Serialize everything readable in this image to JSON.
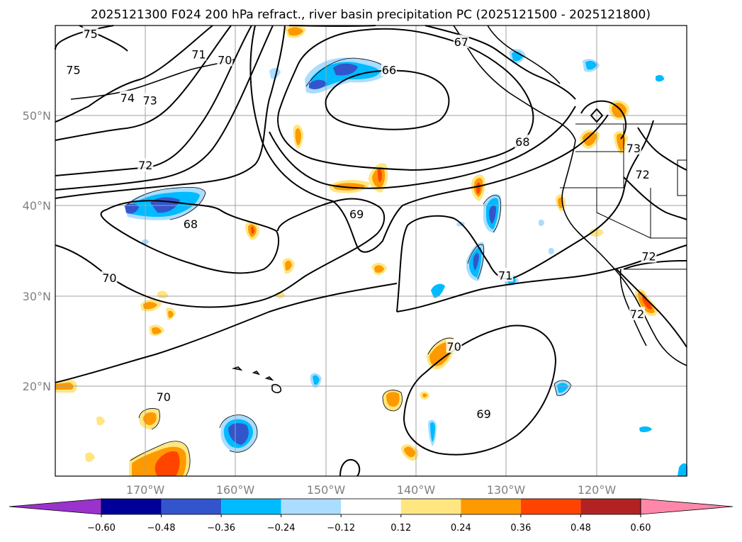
{
  "chart_data": {
    "type": "contour map",
    "title": "2025121300 F024 200 hPa refract., river basin precipitation PC (2025121500 - 2025121800)",
    "lon_range": [
      -180,
      -110
    ],
    "lat_range": [
      10,
      60
    ],
    "grid": true,
    "lon_ticks": [
      {
        "value": -170,
        "label": "170°W"
      },
      {
        "value": -160,
        "label": "160°W"
      },
      {
        "value": -150,
        "label": "150°W"
      },
      {
        "value": -140,
        "label": "140°W"
      },
      {
        "value": -130,
        "label": "130°W"
      },
      {
        "value": -120,
        "label": "120°W"
      }
    ],
    "lat_ticks": [
      {
        "value": 50,
        "label": "50°N"
      },
      {
        "value": 40,
        "label": "40°N"
      },
      {
        "value": 30,
        "label": "30°N"
      },
      {
        "value": 20,
        "label": "20°N"
      }
    ],
    "colorbar": {
      "levels": [
        -0.6,
        -0.48,
        -0.36,
        -0.24,
        -0.12,
        0.12,
        0.24,
        0.36,
        0.48,
        0.6
      ],
      "tick_labels": [
        "−0.60",
        "−0.48",
        "−0.36",
        "−0.24",
        "−0.12",
        "0.12",
        "0.24",
        "0.36",
        "0.48",
        "0.60"
      ],
      "colors": [
        "#9933cc",
        "#000099",
        "#3355cc",
        "#00bbff",
        "#aaddff",
        "#ffffff",
        "#ffe680",
        "#ff9900",
        "#ff4400",
        "#b22222",
        "#ff88aa"
      ],
      "extend": "both"
    },
    "contour_labels": [
      {
        "text": "75",
        "lon": -176.1,
        "lat": 59.1
      },
      {
        "text": "75",
        "lon": -178,
        "lat": 55.1
      },
      {
        "text": "71",
        "lon": -164.1,
        "lat": 56.8
      },
      {
        "text": "70",
        "lon": -161.2,
        "lat": 56.2
      },
      {
        "text": "74",
        "lon": -172,
        "lat": 52
      },
      {
        "text": "73",
        "lon": -169.5,
        "lat": 51.7
      },
      {
        "text": "72",
        "lon": -170,
        "lat": 44.5
      },
      {
        "text": "68",
        "lon": -165,
        "lat": 38
      },
      {
        "text": "70",
        "lon": -174,
        "lat": 32
      },
      {
        "text": "70",
        "lon": -168,
        "lat": 18.8
      },
      {
        "text": "67",
        "lon": -135,
        "lat": 58.2
      },
      {
        "text": "66",
        "lon": -143,
        "lat": 55.1
      },
      {
        "text": "69",
        "lon": -146.6,
        "lat": 39.1
      },
      {
        "text": "68",
        "lon": -128.2,
        "lat": 47.1
      },
      {
        "text": "71",
        "lon": -130.1,
        "lat": 32.3
      },
      {
        "text": "70",
        "lon": -135.8,
        "lat": 24.4
      },
      {
        "text": "69",
        "lon": -132.5,
        "lat": 16.9
      },
      {
        "text": "73",
        "lon": -115.9,
        "lat": 46.4
      },
      {
        "text": "72",
        "lon": -114.9,
        "lat": 43.5
      },
      {
        "text": "72",
        "lon": -114.2,
        "lat": 34.4
      },
      {
        "text": "72",
        "lon": -115.5,
        "lat": 28
      }
    ]
  }
}
